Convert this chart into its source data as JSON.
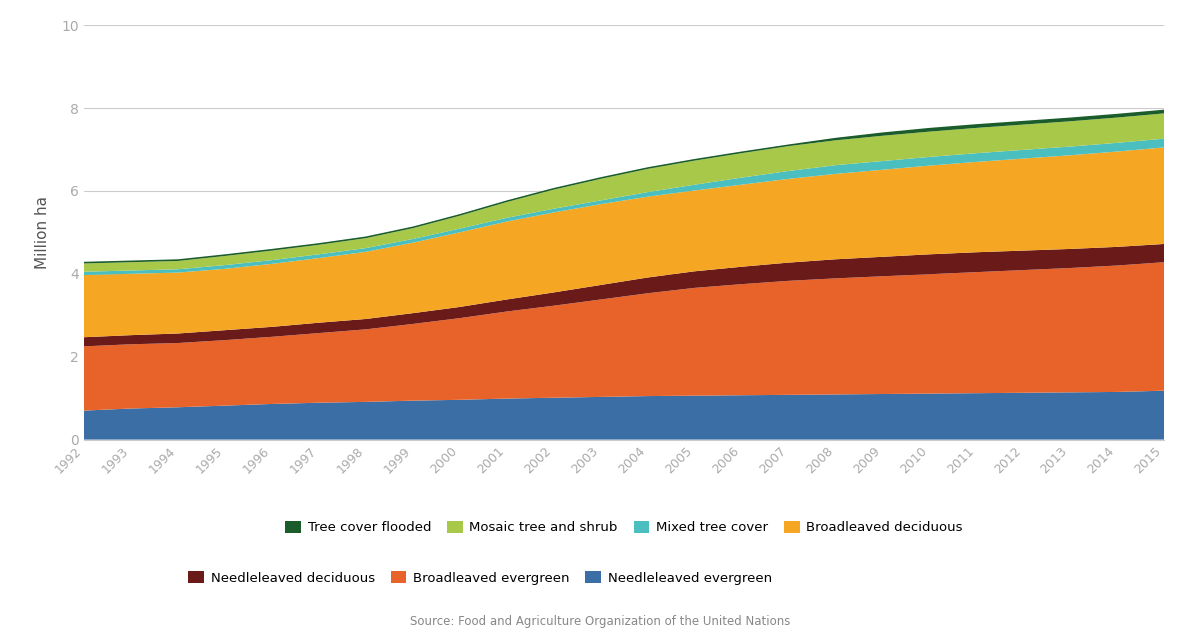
{
  "years": [
    1992,
    1993,
    1994,
    1995,
    1996,
    1997,
    1998,
    1999,
    2000,
    2001,
    2002,
    2003,
    2004,
    2005,
    2006,
    2007,
    2008,
    2009,
    2010,
    2011,
    2012,
    2013,
    2014,
    2015
  ],
  "series": {
    "Needleleaved evergreen": [
      0.7,
      0.75,
      0.78,
      0.82,
      0.86,
      0.89,
      0.91,
      0.94,
      0.96,
      0.99,
      1.01,
      1.03,
      1.05,
      1.06,
      1.07,
      1.08,
      1.09,
      1.1,
      1.11,
      1.12,
      1.13,
      1.14,
      1.15,
      1.18
    ],
    "Broadleaved evergreen": [
      1.55,
      1.55,
      1.55,
      1.58,
      1.62,
      1.68,
      1.75,
      1.85,
      1.97,
      2.1,
      2.22,
      2.35,
      2.48,
      2.6,
      2.68,
      2.75,
      2.8,
      2.84,
      2.88,
      2.92,
      2.96,
      3.0,
      3.05,
      3.1
    ],
    "Needleleaved deciduous": [
      0.22,
      0.22,
      0.23,
      0.24,
      0.24,
      0.25,
      0.25,
      0.26,
      0.27,
      0.29,
      0.32,
      0.35,
      0.38,
      0.4,
      0.42,
      0.44,
      0.46,
      0.47,
      0.48,
      0.48,
      0.47,
      0.46,
      0.45,
      0.44
    ],
    "Broadleaved deciduous": [
      1.5,
      1.48,
      1.47,
      1.48,
      1.52,
      1.56,
      1.62,
      1.7,
      1.8,
      1.88,
      1.93,
      1.95,
      1.95,
      1.95,
      1.98,
      2.02,
      2.06,
      2.1,
      2.14,
      2.18,
      2.22,
      2.26,
      2.3,
      2.33
    ],
    "Mixed tree cover": [
      0.08,
      0.08,
      0.08,
      0.09,
      0.09,
      0.09,
      0.09,
      0.09,
      0.09,
      0.09,
      0.09,
      0.09,
      0.11,
      0.14,
      0.17,
      0.19,
      0.21,
      0.21,
      0.21,
      0.21,
      0.21,
      0.21,
      0.21,
      0.21
    ],
    "Mosaic tree and shrub": [
      0.2,
      0.2,
      0.2,
      0.22,
      0.23,
      0.23,
      0.24,
      0.26,
      0.31,
      0.38,
      0.46,
      0.52,
      0.56,
      0.58,
      0.59,
      0.6,
      0.6,
      0.61,
      0.61,
      0.61,
      0.61,
      0.61,
      0.61,
      0.61
    ],
    "Tree cover flooded": [
      0.04,
      0.04,
      0.04,
      0.04,
      0.04,
      0.04,
      0.04,
      0.04,
      0.04,
      0.04,
      0.04,
      0.04,
      0.04,
      0.04,
      0.04,
      0.04,
      0.06,
      0.08,
      0.09,
      0.09,
      0.09,
      0.09,
      0.09,
      0.09
    ]
  },
  "colors": {
    "Needleleaved evergreen": "#3a6ea5",
    "Broadleaved evergreen": "#e8632a",
    "Needleleaved deciduous": "#6b1a1a",
    "Broadleaved deciduous": "#f5a623",
    "Mixed tree cover": "#4bbfbf",
    "Mosaic tree and shrub": "#a8c84a",
    "Tree cover flooded": "#1a5c2a"
  },
  "legend_order": [
    "Tree cover flooded",
    "Mosaic tree and shrub",
    "Mixed tree cover",
    "Broadleaved deciduous",
    "Needleleaved deciduous",
    "Broadleaved evergreen",
    "Needleleaved evergreen"
  ],
  "stack_order": [
    "Needleleaved evergreen",
    "Broadleaved evergreen",
    "Needleleaved deciduous",
    "Broadleaved deciduous",
    "Mixed tree cover",
    "Mosaic tree and shrub",
    "Tree cover flooded"
  ],
  "ylabel": "Million ha",
  "ylim": [
    0,
    10
  ],
  "yticks": [
    0,
    2,
    4,
    6,
    8,
    10
  ],
  "source": "Source: Food and Agriculture Organization of the United Nations",
  "background_color": "#ffffff",
  "grid_color": "#cccccc",
  "tick_color": "#aaaaaa",
  "label_color": "#555555"
}
